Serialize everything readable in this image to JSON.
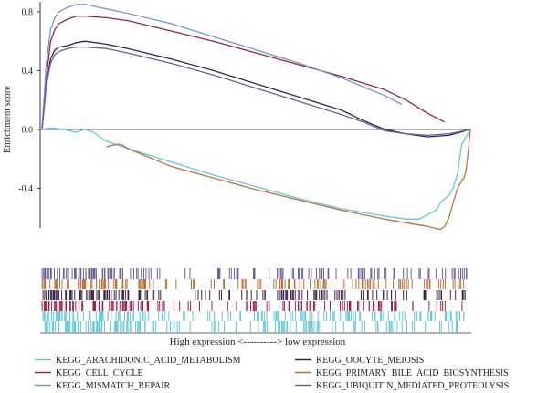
{
  "chart_data": {
    "type": "line",
    "ylabel": "Enrichment score",
    "ylim": [
      -0.72,
      0.88
    ],
    "xlim": [
      0,
      100
    ],
    "yticks": [
      0.8,
      0.4,
      0.0,
      -0.4
    ],
    "ytick_labels": [
      "0.8",
      "0.4",
      "0.0",
      "-0.4"
    ],
    "x_caption": "High expression <----------> low expression",
    "zero_line": true,
    "series": [
      {
        "name": "KEGG_ARACHIDONIC_ACID_METABOLISM",
        "color": "#62c8d8",
        "x": [
          0,
          2,
          5,
          8,
          10,
          12,
          15,
          20,
          30,
          40,
          50,
          60,
          70,
          80,
          85,
          88,
          90,
          92,
          93,
          94,
          95,
          96,
          97,
          98,
          100
        ],
        "y": [
          0,
          0.01,
          0.0,
          -0.02,
          0.0,
          -0.02,
          -0.08,
          -0.13,
          -0.22,
          -0.31,
          -0.39,
          -0.47,
          -0.54,
          -0.59,
          -0.61,
          -0.61,
          -0.58,
          -0.55,
          -0.5,
          -0.47,
          -0.45,
          -0.4,
          -0.3,
          -0.1,
          0
        ]
      },
      {
        "name": "KEGG_CELL_CYCLE",
        "color": "#9c2345",
        "x": [
          0,
          1,
          2,
          3,
          4,
          6,
          8,
          10,
          15,
          20,
          30,
          40,
          50,
          60,
          70,
          80,
          85,
          90,
          94
        ],
        "y": [
          0,
          0.35,
          0.6,
          0.68,
          0.72,
          0.75,
          0.77,
          0.77,
          0.76,
          0.74,
          0.67,
          0.6,
          0.52,
          0.44,
          0.36,
          0.27,
          0.2,
          0.11,
          0.05
        ]
      },
      {
        "name": "KEGG_MISMATCH_REPAIR",
        "color": "#6d9ad0",
        "x": [
          0,
          1,
          2,
          3,
          4,
          6,
          8,
          10,
          15,
          20,
          30,
          40,
          50,
          60,
          70,
          80,
          84
        ],
        "y": [
          0,
          0.45,
          0.68,
          0.76,
          0.8,
          0.83,
          0.85,
          0.85,
          0.82,
          0.79,
          0.72,
          0.63,
          0.54,
          0.45,
          0.35,
          0.23,
          0.17
        ]
      },
      {
        "name": "KEGG_OOCYTE_MEIOSIS",
        "color": "#3a2350",
        "x": [
          0,
          1,
          2,
          3,
          4,
          6,
          8,
          10,
          15,
          20,
          30,
          40,
          50,
          60,
          70,
          75,
          80,
          85,
          90,
          95,
          100
        ],
        "y": [
          0,
          0.3,
          0.48,
          0.54,
          0.56,
          0.57,
          0.59,
          0.6,
          0.58,
          0.55,
          0.48,
          0.4,
          0.31,
          0.22,
          0.13,
          0.06,
          0.0,
          -0.03,
          -0.05,
          -0.04,
          0
        ]
      },
      {
        "name": "KEGG_PRIMARY_BILE_ACID_BIOSYNTHESIS",
        "color": "#b8733a",
        "x": [
          15,
          16,
          18,
          19,
          20,
          25,
          30,
          40,
          50,
          60,
          70,
          80,
          90,
          93,
          94,
          95,
          96,
          97,
          98,
          98.5,
          99,
          99.5,
          100
        ],
        "y": [
          -0.12,
          -0.11,
          -0.1,
          -0.11,
          -0.13,
          -0.19,
          -0.25,
          -0.33,
          -0.41,
          -0.48,
          -0.55,
          -0.61,
          -0.66,
          -0.68,
          -0.66,
          -0.6,
          -0.5,
          -0.4,
          -0.35,
          -0.33,
          -0.28,
          -0.15,
          0
        ]
      },
      {
        "name": "KEGG_UBIQUITIN_MEDIATED_PROTEOLYSIS",
        "color": "#6c5f9e",
        "x": [
          0,
          1,
          2,
          3,
          4,
          6,
          8,
          10,
          15,
          20,
          30,
          40,
          50,
          60,
          70,
          75,
          80,
          85,
          90,
          95,
          100
        ],
        "y": [
          0,
          0.3,
          0.45,
          0.51,
          0.53,
          0.55,
          0.56,
          0.56,
          0.55,
          0.52,
          0.45,
          0.37,
          0.28,
          0.19,
          0.1,
          0.05,
          -0.01,
          -0.03,
          -0.04,
          -0.03,
          0
        ]
      }
    ]
  },
  "legend": {
    "rows": [
      [
        0,
        3
      ],
      [
        1,
        4
      ],
      [
        2,
        5
      ]
    ]
  }
}
